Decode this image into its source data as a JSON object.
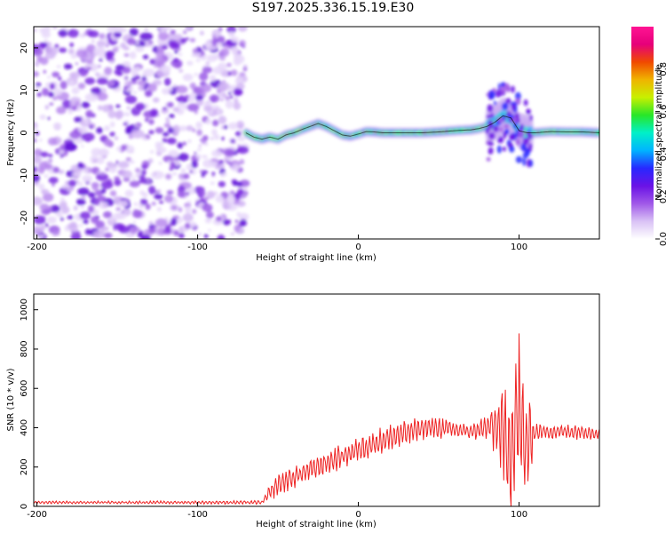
{
  "title": "S197.2025.336.15.19.E30",
  "colors": {
    "snr_line": "#ee2222",
    "ridge_line": "#000000",
    "colormap": [
      "#ffffff",
      "#d9c2f5",
      "#a058e8",
      "#6a12e6",
      "#2828ff",
      "#00b4ff",
      "#00f0c8",
      "#28e628",
      "#c8f000",
      "#f0b400",
      "#f04a00",
      "#e6007a",
      "#ff1493"
    ]
  },
  "chart_data": [
    {
      "type": "heatmap",
      "title": "",
      "xlabel": "Height of straight line (km)",
      "ylabel": "Frequency (Hz)",
      "xlim": [
        -202,
        150
      ],
      "ylim": [
        -25,
        25
      ],
      "xticks": [
        -200,
        -100,
        0,
        100
      ],
      "xtick_labels": [
        "-200",
        "-100",
        "0",
        "100"
      ],
      "yticks": [
        -20,
        -10,
        0,
        10,
        20
      ],
      "ytick_labels": [
        "-20",
        "-10",
        "0",
        "10",
        "20"
      ],
      "ridge": {
        "x": [
          -70,
          -65,
          -60,
          -55,
          -50,
          -45,
          -40,
          -35,
          -30,
          -25,
          -20,
          -15,
          -10,
          -5,
          0,
          5,
          10,
          15,
          20,
          30,
          40,
          50,
          60,
          65,
          70,
          75,
          80,
          85,
          90,
          95,
          100,
          105,
          110,
          120,
          130,
          140,
          150
        ],
        "y": [
          0,
          -1,
          -1.5,
          -1,
          -1.5,
          -0.5,
          0,
          0.8,
          1.5,
          2.2,
          1.5,
          0.5,
          -0.5,
          -0.8,
          -0.3,
          0.3,
          0.2,
          0,
          0,
          0,
          0,
          0.2,
          0.5,
          0.6,
          0.7,
          1,
          1.5,
          2.5,
          4,
          3.5,
          0.5,
          0,
          0,
          0.3,
          0.2,
          0.2,
          0
        ]
      },
      "noise_region_x": [
        -202,
        -70
      ],
      "colorbar": {
        "label": "Normalized spectral amplitude",
        "range": [
          0,
          1
        ],
        "ticks": [
          0,
          0.2,
          0.4,
          0.6,
          0.8
        ],
        "tick_labels": [
          "0.0",
          "0.2",
          "0.4",
          "0.6",
          "0.8"
        ]
      }
    },
    {
      "type": "line",
      "title": "",
      "xlabel": "Height of straight line (km)",
      "ylabel": "SNR (10 * v/v)",
      "xlim": [
        -202,
        150
      ],
      "ylim": [
        0,
        1080
      ],
      "xticks": [
        -200,
        -100,
        0,
        100
      ],
      "xtick_labels": [
        "-200",
        "-100",
        "0",
        "100"
      ],
      "yticks": [
        0,
        200,
        400,
        600,
        800,
        1000
      ],
      "ytick_labels": [
        "0",
        "200",
        "400",
        "600",
        "800",
        "1000"
      ],
      "series": [
        {
          "name": "SNR",
          "x": [
            -202,
            -140,
            -60,
            -55,
            -50,
            -40,
            -20,
            0,
            20,
            40,
            50,
            60,
            70,
            80,
            85,
            88,
            92,
            96,
            98,
            100,
            102,
            104,
            106,
            108,
            110,
            120,
            130,
            140,
            150
          ],
          "baseline": [
            20,
            20,
            20,
            70,
            110,
            150,
            220,
            290,
            350,
            400,
            400,
            390,
            380,
            400,
            410,
            390,
            330,
            300,
            450,
            500,
            350,
            300,
            330,
            350,
            380,
            380,
            380,
            380,
            370
          ],
          "amplitude": [
            7,
            7,
            10,
            45,
            55,
            60,
            60,
            65,
            70,
            65,
            55,
            45,
            40,
            70,
            150,
            220,
            300,
            420,
            420,
            500,
            420,
            320,
            230,
            150,
            45,
            40,
            40,
            40,
            35
          ]
        }
      ]
    }
  ]
}
